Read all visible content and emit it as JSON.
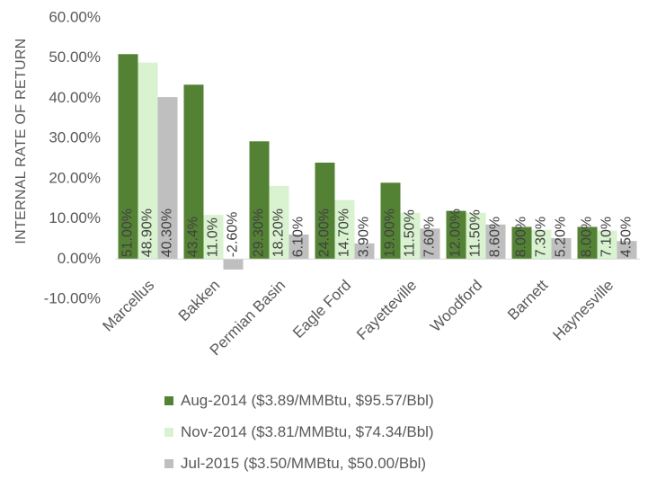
{
  "chart_data": {
    "type": "bar",
    "ylabel": "INTERNAL RATE OF RETURN",
    "ylim": [
      -10,
      60
    ],
    "yticks": [
      "-10.00%",
      "0.00%",
      "10.00%",
      "20.00%",
      "30.00%",
      "40.00%",
      "50.00%",
      "60.00%"
    ],
    "categories": [
      "Marcellus",
      "Bakken",
      "Permian Basin",
      "Eagle Ford",
      "Fayetteville",
      "Woodford",
      "Barnett",
      "Haynesville"
    ],
    "series": [
      {
        "name": "Aug-2014 ($3.89/MMBtu, $95.57/Bbl)",
        "color": "#548235",
        "values": [
          51.0,
          43.4,
          29.3,
          24.0,
          19.0,
          12.0,
          8.0,
          8.0
        ],
        "labels": [
          "51.00%",
          "43.4%",
          "29.30%",
          "24.00%",
          "19.00%",
          "12.00%",
          "8.00%",
          "8.00%"
        ]
      },
      {
        "name": "Nov-2014 ($3.81/MMBtu, $74.34/Bbl)",
        "color": "#d9f2d0",
        "values": [
          48.9,
          11.0,
          18.2,
          14.7,
          11.5,
          11.5,
          7.3,
          7.1
        ],
        "labels": [
          "48.90%",
          "11.0%",
          "18.20%",
          "14.70%",
          "11.50%",
          "11.50%",
          "7.30%",
          "7.10%"
        ]
      },
      {
        "name": "Jul-2015 ($3.50/MMBtu, $50.00/Bbl)",
        "color": "#bfbfbf",
        "values": [
          40.3,
          -2.6,
          6.1,
          3.9,
          7.6,
          8.6,
          5.2,
          4.5
        ],
        "labels": [
          "40.30%",
          "-2.60%",
          "6.10%",
          "3.90%",
          "7.60%",
          "8.60%",
          "5.20%",
          "4.50%"
        ]
      }
    ],
    "grid": false,
    "legend_position": "bottom"
  }
}
